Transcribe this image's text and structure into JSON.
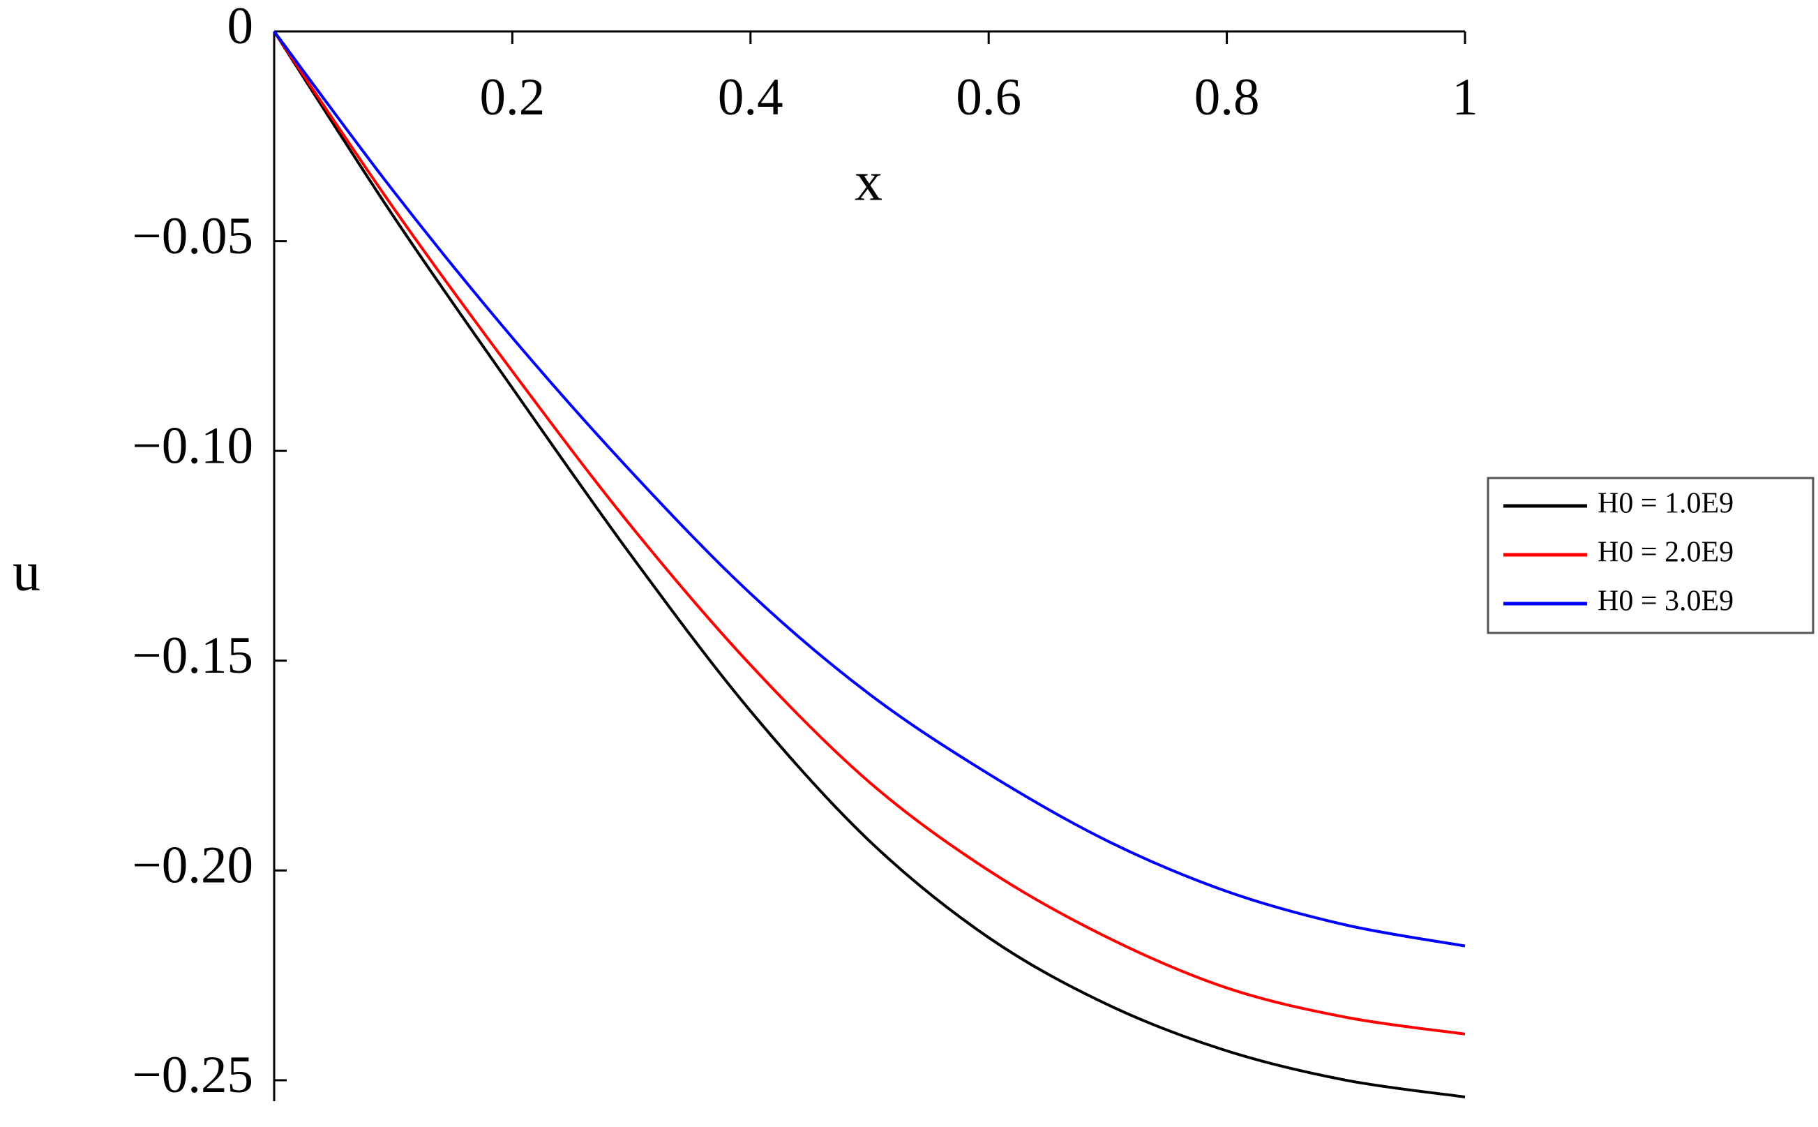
{
  "chart_data": {
    "type": "line",
    "x_label": "x",
    "y_label": "u",
    "x": [
      0,
      0.1,
      0.2,
      0.3,
      0.4,
      0.5,
      0.6,
      0.7,
      0.8,
      0.9,
      1
    ],
    "series": [
      {
        "name": "H0 = 1.0E9",
        "color": "#000000",
        "values": [
          0,
          -0.044,
          -0.085,
          -0.125,
          -0.162,
          -0.193,
          -0.216,
          -0.232,
          -0.243,
          -0.25,
          -0.254
        ]
      },
      {
        "name": "H0 = 2.0E9",
        "color": "#ff0000",
        "values": [
          0,
          -0.042,
          -0.081,
          -0.118,
          -0.151,
          -0.179,
          -0.2,
          -0.216,
          -0.228,
          -0.235,
          -0.239
        ]
      },
      {
        "name": "H0 = 3.0E9",
        "color": "#0000ff",
        "values": [
          0,
          -0.038,
          -0.073,
          -0.105,
          -0.134,
          -0.158,
          -0.177,
          -0.193,
          -0.205,
          -0.213,
          -0.218
        ]
      }
    ],
    "xlim": [
      0,
      1
    ],
    "ylim": [
      -0.255,
      0
    ],
    "xticks": [
      0.2,
      0.4,
      0.6,
      0.8,
      1
    ],
    "yticks": [
      0,
      {
        "value": -0.05,
        "label": "−0.05"
      },
      {
        "value": -0.1,
        "label": "−0.10"
      },
      {
        "value": -0.15,
        "label": "−0.15"
      },
      {
        "value": -0.2,
        "label": "−0.20"
      },
      {
        "value": -0.25,
        "label": "−0.25"
      }
    ],
    "grid": false,
    "legend": "right"
  }
}
